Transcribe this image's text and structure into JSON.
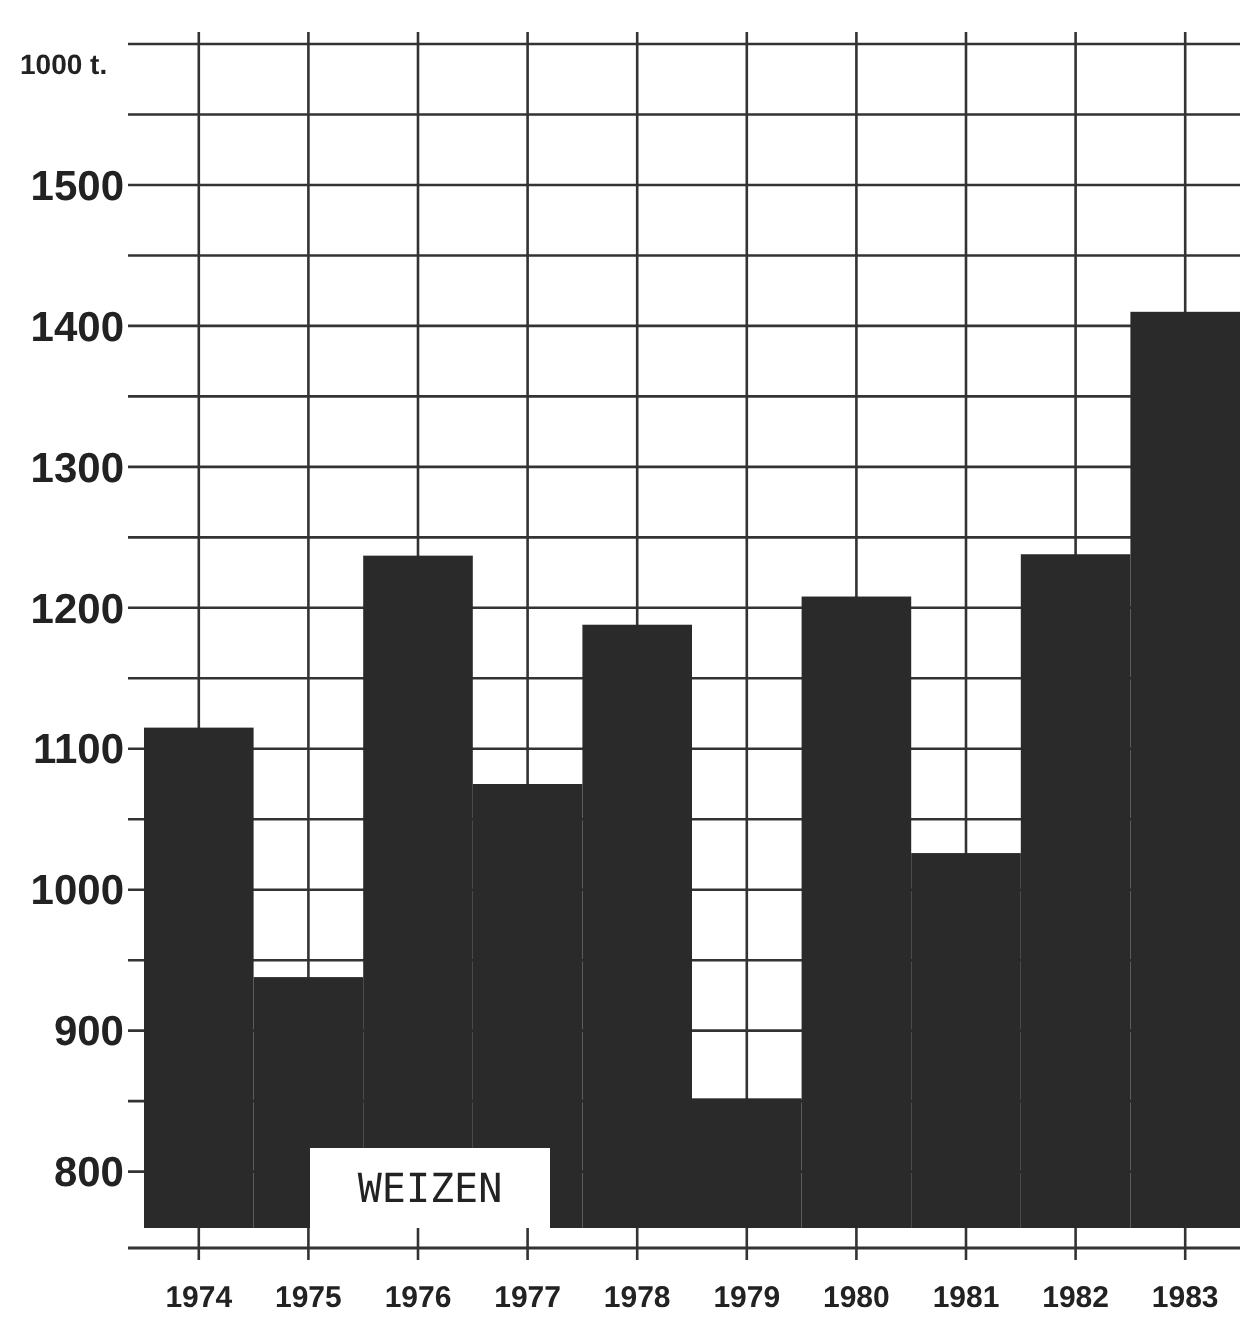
{
  "chart_data": {
    "type": "bar",
    "title": "WEIZEN",
    "ylabel": "1000 t.",
    "categories": [
      "1974",
      "1975",
      "1976",
      "1977",
      "1978",
      "1979",
      "1980",
      "1981",
      "1982",
      "1983"
    ],
    "values": [
      1115,
      938,
      1237,
      1075,
      1188,
      852,
      1208,
      1026,
      1238,
      1410
    ],
    "color": "#2a2a2a",
    "ylim": [
      760,
      1600
    ],
    "yticks": [
      800,
      {
        "value": 850,
        "label": null
      },
      900,
      {
        "value": 950,
        "label": null
      },
      1000,
      {
        "value": 1050,
        "label": null
      },
      1100,
      {
        "value": 1150,
        "label": null
      },
      1200,
      {
        "value": 1250,
        "label": null
      },
      1300,
      {
        "value": 1350,
        "label": null
      },
      1400,
      {
        "value": 1450,
        "label": null
      },
      1500,
      {
        "value": 1550,
        "label": null
      },
      {
        "value": 1600,
        "label": null
      }
    ],
    "grid": true
  }
}
